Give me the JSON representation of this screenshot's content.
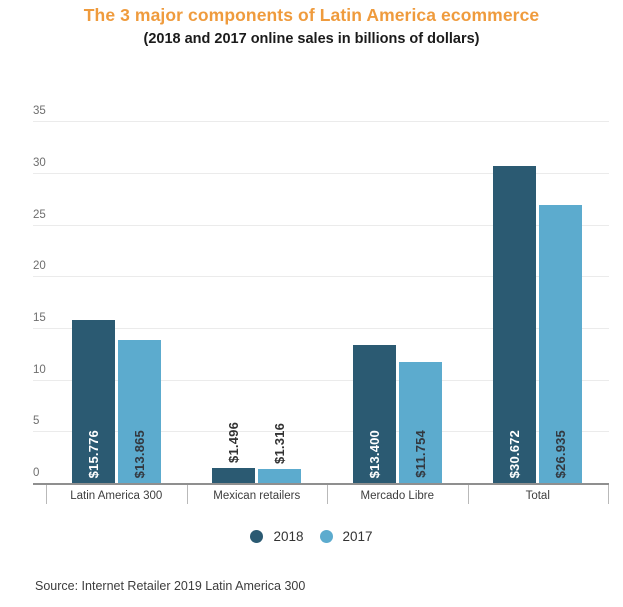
{
  "title": "The 3 major components of Latin America ecommerce",
  "subtitle": "(2018 and 2017 online sales in billions of dollars)",
  "source": "Source: Internet Retailer 2019 Latin America 300",
  "colors": {
    "title_orange": "#EF9B3D",
    "series_2018": "#2B5A72",
    "series_2017": "#5CABCE",
    "gridline": "#EBEBEB",
    "axis_line": "#8F8F8F"
  },
  "chart_data": {
    "type": "bar",
    "title": "The 3 major components of Latin America ecommerce",
    "subtitle": "(2018 and 2017 online sales in billions of dollars)",
    "categories": [
      "Latin America 300",
      "Mexican retailers",
      "Mercado Libre",
      "Total"
    ],
    "series": [
      {
        "name": "2018",
        "color": "#2B5A72",
        "values": [
          15.776,
          1.496,
          13.4,
          30.672
        ],
        "labels": [
          "$15.776",
          "$1.496",
          "$13.400",
          "$30.672"
        ],
        "label_color_inside": "#ffffff"
      },
      {
        "name": "2017",
        "color": "#5CABCE",
        "values": [
          13.865,
          1.316,
          11.754,
          26.935
        ],
        "labels": [
          "$13.865",
          "$1.316",
          "$11.754",
          "$26.935"
        ],
        "label_color_inside": "#33383f"
      }
    ],
    "xlabel": "",
    "ylabel": "",
    "ylim": [
      0,
      35
    ],
    "yticks": [
      0,
      5,
      10,
      15,
      20,
      25,
      30,
      35
    ],
    "grid": true,
    "legend_position": "bottom"
  },
  "legend": {
    "items": [
      {
        "label": "2018",
        "color": "#2B5A72"
      },
      {
        "label": "2017",
        "color": "#5CABCE"
      }
    ]
  }
}
